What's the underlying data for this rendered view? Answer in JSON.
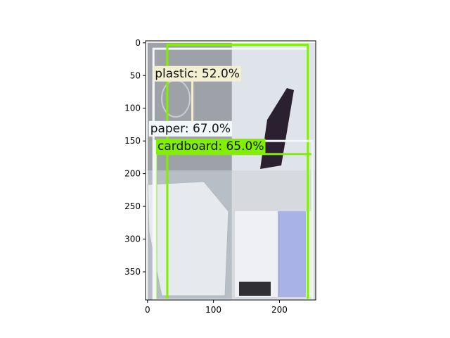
{
  "plot": {
    "xlim": [
      -3,
      255
    ],
    "ylim": [
      393,
      -3
    ],
    "x_ticks": [
      0,
      100,
      200
    ],
    "y_ticks": [
      0,
      50,
      100,
      150,
      200,
      250,
      300,
      350
    ]
  },
  "image_quadrants": [
    {
      "name": "bottle-photo",
      "x0": 0,
      "y0": 0,
      "x1": 128,
      "y1": 195,
      "color": "#9ea1a8"
    },
    {
      "name": "dark-bottle-photo",
      "x0": 128,
      "y0": 0,
      "x1": 255,
      "y1": 195,
      "color": "#dfe3ea"
    },
    {
      "name": "envelope-photo",
      "x0": 0,
      "y0": 195,
      "x1": 128,
      "y1": 393,
      "color": "#b8bec6"
    },
    {
      "name": "leaflet-photo",
      "x0": 128,
      "y0": 195,
      "x1": 255,
      "y1": 393,
      "color": "#d6d9de"
    }
  ],
  "detections": [
    {
      "label": "plastic: 52.0%",
      "color": "#f2efd2",
      "x0": 9,
      "y0": 57,
      "x1": 68,
      "y1": 132,
      "label_x": 9,
      "label_y": 57
    },
    {
      "label": "paper: 67.0%",
      "color": "#f2f7fa",
      "x0": 9,
      "y0": 9,
      "x1": 243,
      "y1": 393,
      "label_x": 2,
      "label_y": 141
    },
    {
      "label": "cardboard: 65.0%",
      "color": "#80f000",
      "x0": 13,
      "y0": 170,
      "x1": 250,
      "y1": 393,
      "label_x": 13,
      "label_y": 168
    },
    {
      "label": "",
      "color": "#80f000",
      "x0": 30,
      "y0": 3,
      "x1": 243,
      "y1": 393,
      "label_x": 30,
      "label_y": 3
    },
    {
      "label": "",
      "color": "#f2f7fa",
      "x0": 12,
      "y0": 150,
      "x1": 250,
      "y1": 393,
      "label_x": 12,
      "label_y": 150
    }
  ]
}
